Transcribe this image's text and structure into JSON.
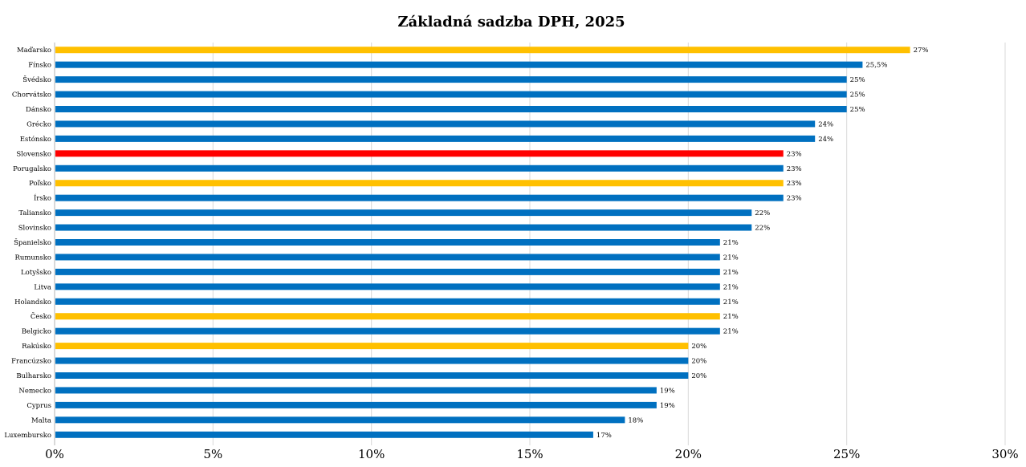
{
  "chart_data": {
    "type": "bar",
    "orientation": "horizontal",
    "title": "Základná sadzba DPH, 2025",
    "xlabel": "",
    "ylabel": "",
    "xlim": [
      0,
      30
    ],
    "x_ticks": [
      "0%",
      "5%",
      "10%",
      "15%",
      "20%",
      "25%",
      "30%"
    ],
    "grid": true,
    "categories": [
      "Maďarsko",
      "Fínsko",
      "Švédsko",
      "Chorvátsko",
      "Dánsko",
      "Grécko",
      "Estónsko",
      "Slovensko",
      "Porugalsko",
      "Poľsko",
      "Írsko",
      "Taliansko",
      "Slovinsko",
      "Španielsko",
      "Rumunsko",
      "Lotyšsko",
      "Litva",
      "Holandsko",
      "Česko",
      "Belgicko",
      "Rakúsko",
      "Francúzsko",
      "Bulharsko",
      "Nemecko",
      "Cyprus",
      "Malta",
      "Luxembursko"
    ],
    "values": [
      27,
      25.5,
      25,
      25,
      25,
      24,
      24,
      23,
      23,
      23,
      23,
      22,
      22,
      21,
      21,
      21,
      21,
      21,
      21,
      21,
      20,
      20,
      20,
      19,
      19,
      18,
      17
    ],
    "data_labels": [
      "27%",
      "25,5%",
      "25%",
      "25%",
      "25%",
      "24%",
      "24%",
      "23%",
      "23%",
      "23%",
      "23%",
      "22%",
      "22%",
      "21%",
      "21%",
      "21%",
      "21%",
      "21%",
      "21%",
      "21%",
      "20%",
      "20%",
      "20%",
      "19%",
      "19%",
      "18%",
      "17%"
    ],
    "bar_groups": [
      "highlight",
      "default",
      "default",
      "default",
      "default",
      "default",
      "default",
      "slovakia",
      "default",
      "highlight",
      "default",
      "default",
      "default",
      "default",
      "default",
      "default",
      "default",
      "default",
      "highlight",
      "default",
      "highlight",
      "default",
      "default",
      "default",
      "default",
      "default",
      "default"
    ],
    "colors": {
      "default": "#0070C0",
      "highlight": "#FFC000",
      "slovakia": "#FF0000",
      "grid": "#D9D9D9"
    }
  }
}
